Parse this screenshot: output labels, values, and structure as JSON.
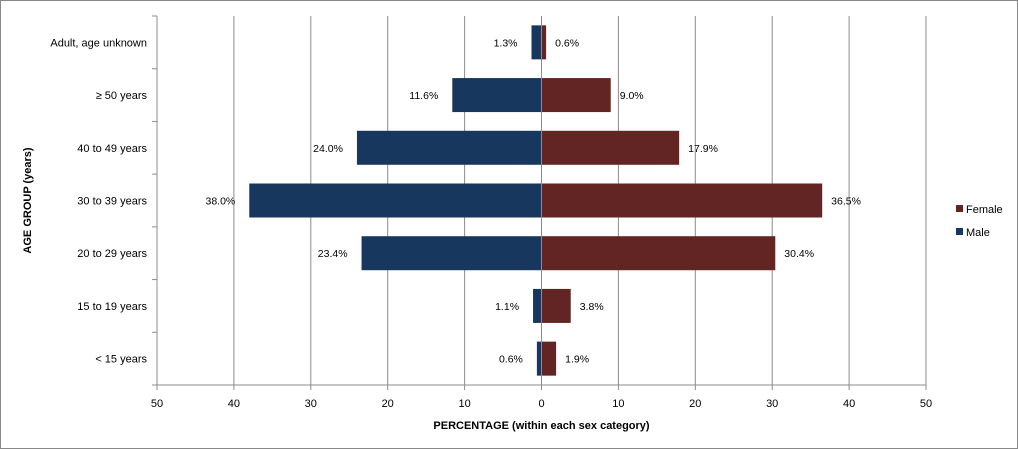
{
  "chart_data": {
    "type": "bar",
    "orientation": "horizontal",
    "layout": "population-pyramid",
    "title": "",
    "categories": [
      "Adult, age unknown",
      "≥ 50 years",
      "40 to 49 years",
      "30 to 39 years",
      "20 to 29 years",
      "15 to 19 years",
      "< 15 years"
    ],
    "series": [
      {
        "name": "Male",
        "side": "left",
        "color": "#17375e",
        "values": [
          1.3,
          11.6,
          24.0,
          38.0,
          23.4,
          1.1,
          0.6
        ],
        "labels": [
          "1.3%",
          "11.6%",
          "24.0%",
          "38.0%",
          "23.4%",
          "1.1%",
          "0.6%"
        ]
      },
      {
        "name": "Female",
        "side": "right",
        "color": "#632523",
        "values": [
          0.6,
          9.0,
          17.9,
          36.5,
          30.4,
          3.8,
          1.9
        ],
        "labels": [
          "0.6%",
          "9.0%",
          "17.9%",
          "36.5%",
          "30.4%",
          "3.8%",
          "1.9%"
        ]
      }
    ],
    "xlim": [
      -50,
      50
    ],
    "x_ticks": [
      -50,
      -40,
      -30,
      -20,
      -10,
      0,
      10,
      20,
      30,
      40,
      50
    ],
    "x_tick_labels": [
      "50",
      "40",
      "30",
      "20",
      "10",
      "0",
      "10",
      "20",
      "30",
      "40",
      "50"
    ],
    "xlabel": "PERCENTAGE  (within each sex category)",
    "ylabel": "AGE GROUP  (years)",
    "grid": "vertical",
    "legend": {
      "position": "right",
      "entries": [
        "Female",
        "Male"
      ]
    }
  }
}
